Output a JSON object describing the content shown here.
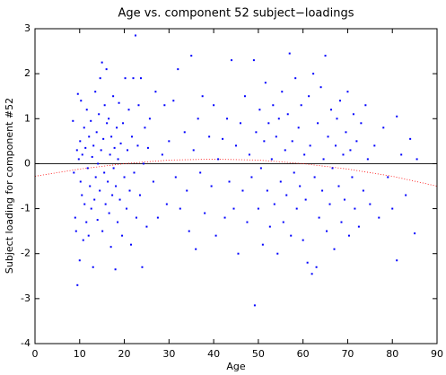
{
  "chart_data": {
    "type": "scatter",
    "title": "Age vs. component 52 subject−loadings",
    "x_label": "Age",
    "y_label": "Subject loading for component #52",
    "xlim": [
      0,
      90
    ],
    "ylim": [
      -4,
      3
    ],
    "xticks": [
      0,
      10,
      20,
      30,
      40,
      50,
      60,
      70,
      80,
      90
    ],
    "yticks": [
      -4,
      -3,
      -2,
      -1,
      0,
      1,
      2,
      3
    ],
    "color": "#0000ff",
    "reference_line": 0,
    "x": [
      8.5,
      8.7,
      9,
      9.2,
      9.4,
      9.5,
      9.6,
      9.8,
      10,
      10.1,
      10.2,
      10.3,
      10.5,
      10.6,
      10.8,
      11,
      11.1,
      11.3,
      11.5,
      11.6,
      11.8,
      12,
      12.1,
      12.3,
      12.5,
      12.6,
      12.8,
      13,
      13.1,
      13.3,
      13.5,
      13.6,
      13.8,
      14,
      14.1,
      14.3,
      14.5,
      14.6,
      14.8,
      15,
      15.1,
      15.3,
      15.5,
      15.6,
      15.8,
      16,
      16.1,
      16.3,
      16.5,
      16.6,
      16.8,
      17,
      17.1,
      17.3,
      17.5,
      17.6,
      17.8,
      18,
      18.1,
      18.3,
      18.5,
      18.6,
      18.8,
      19,
      19.2,
      19.5,
      19.7,
      20,
      20.2,
      20.5,
      20.7,
      21,
      21.2,
      21.5,
      21.7,
      22,
      22.2,
      22.5,
      22.7,
      23,
      23.2,
      23.5,
      23.7,
      24,
      24.3,
      24.6,
      25,
      25.3,
      25.7,
      26.5,
      27,
      27.5,
      28.5,
      29,
      29.5,
      30,
      31,
      31.5,
      32,
      32.5,
      33.5,
      34,
      34.5,
      35,
      35.5,
      36,
      36.5,
      37,
      37.5,
      38,
      39,
      39.5,
      40,
      40.5,
      41,
      42,
      42.5,
      43,
      43.5,
      44,
      44.5,
      45,
      45.5,
      46,
      46.5,
      47,
      47.5,
      48,
      48.5,
      49,
      49.2,
      49.5,
      50,
      50.3,
      50.6,
      51,
      51.3,
      51.6,
      52,
      52.3,
      52.6,
      53,
      53.3,
      53.6,
      54,
      54.3,
      54.6,
      55,
      55.3,
      55.6,
      56,
      56.3,
      56.6,
      57,
      57.3,
      57.6,
      58,
      58.3,
      58.6,
      59,
      59.3,
      59.6,
      60,
      60.3,
      60.6,
      61,
      61.3,
      61.6,
      62,
      62.3,
      62.6,
      63,
      63.3,
      63.6,
      64,
      64.3,
      64.6,
      65,
      65.3,
      65.6,
      66,
      66.3,
      66.6,
      67,
      67.3,
      67.6,
      68,
      68.3,
      68.6,
      69,
      69.3,
      69.6,
      70,
      70.3,
      70.6,
      71,
      71.3,
      71.6,
      72,
      72.5,
      73,
      73.5,
      74,
      74.5,
      75,
      76,
      77,
      78,
      79,
      80,
      81,
      81,
      82,
      83,
      84,
      85,
      85.5
    ],
    "values": [
      0.95,
      -0.2,
      -1.2,
      -1.5,
      0.3,
      -2.7,
      1.55,
      0.1,
      -2.15,
      0.5,
      -0.4,
      1.4,
      -0.7,
      0.2,
      -1.7,
      0.8,
      -0.9,
      0.35,
      -1.3,
      1.2,
      -0.1,
      -1.6,
      0.6,
      -0.5,
      0.95,
      -1.0,
      0.15,
      -2.3,
      0.4,
      -0.8,
      1.6,
      -0.3,
      0.7,
      -1.25,
      0.0,
      1.1,
      -0.6,
      1.9,
      0.3,
      2.25,
      -1.5,
      0.55,
      -0.2,
      1.3,
      -0.9,
      2.1,
      0.9,
      -0.4,
      1.0,
      -1.1,
      0.2,
      -1.85,
      0.6,
      -0.7,
      1.5,
      -0.1,
      0.35,
      -2.35,
      -0.5,
      0.8,
      -1.3,
      0.1,
      1.35,
      -0.8,
      0.45,
      -1.6,
      0.9,
      -0.3,
      1.9,
      -1.0,
      0.3,
      1.2,
      -0.6,
      -1.8,
      0.6,
      1.9,
      -0.2,
      2.85,
      -1.2,
      0.4,
      1.3,
      -0.7,
      1.9,
      -2.3,
      0.0,
      0.8,
      -1.4,
      0.35,
      1.0,
      -0.4,
      1.6,
      -1.2,
      0.2,
      1.3,
      -0.9,
      0.5,
      1.4,
      -0.3,
      2.1,
      -1.0,
      0.7,
      -0.6,
      -1.5,
      2.4,
      0.3,
      -1.9,
      1.0,
      -0.2,
      1.5,
      -1.1,
      0.6,
      -0.5,
      1.3,
      -1.6,
      0.1,
      0.55,
      -1.2,
      1.0,
      -0.4,
      2.3,
      -1.0,
      0.4,
      -2.0,
      0.9,
      -0.6,
      1.5,
      -1.3,
      0.2,
      -0.3,
      2.3,
      -3.15,
      0.7,
      -1.0,
      1.2,
      -0.1,
      -1.8,
      0.5,
      1.8,
      -0.6,
      0.9,
      -1.4,
      0.1,
      1.3,
      -0.9,
      0.6,
      -2.0,
      1.0,
      -0.4,
      1.6,
      -1.3,
      0.3,
      -0.7,
      1.1,
      2.45,
      -1.6,
      0.5,
      -0.2,
      1.9,
      -1.0,
      0.8,
      -0.5,
      1.3,
      -1.7,
      0.2,
      -0.8,
      -2.2,
      1.5,
      0.4,
      -2.45,
      2.0,
      -0.3,
      -2.3,
      0.9,
      -1.2,
      1.7,
      -0.6,
      0.1,
      2.4,
      -1.5,
      0.6,
      -0.9,
      1.2,
      -0.1,
      -1.9,
      0.4,
      1.0,
      -0.5,
      1.4,
      -1.3,
      0.2,
      -0.8,
      0.7,
      1.6,
      -1.6,
      0.3,
      -0.3,
      1.1,
      -1.0,
      0.5,
      -1.4,
      0.9,
      -0.6,
      1.3,
      0.1,
      -0.9,
      0.4,
      -1.2,
      0.8,
      -0.3,
      -1.0,
      1.05,
      -2.15,
      0.2,
      -0.7,
      0.55,
      -1.55,
      0.1
    ],
    "fit": {
      "color": "#ff0000",
      "x": [
        0,
        10,
        20,
        30,
        40,
        50,
        60,
        70,
        80,
        90
      ],
      "values": [
        -0.28,
        -0.12,
        0.0,
        0.08,
        0.1,
        0.08,
        0.0,
        -0.12,
        -0.28,
        -0.5
      ]
    }
  }
}
